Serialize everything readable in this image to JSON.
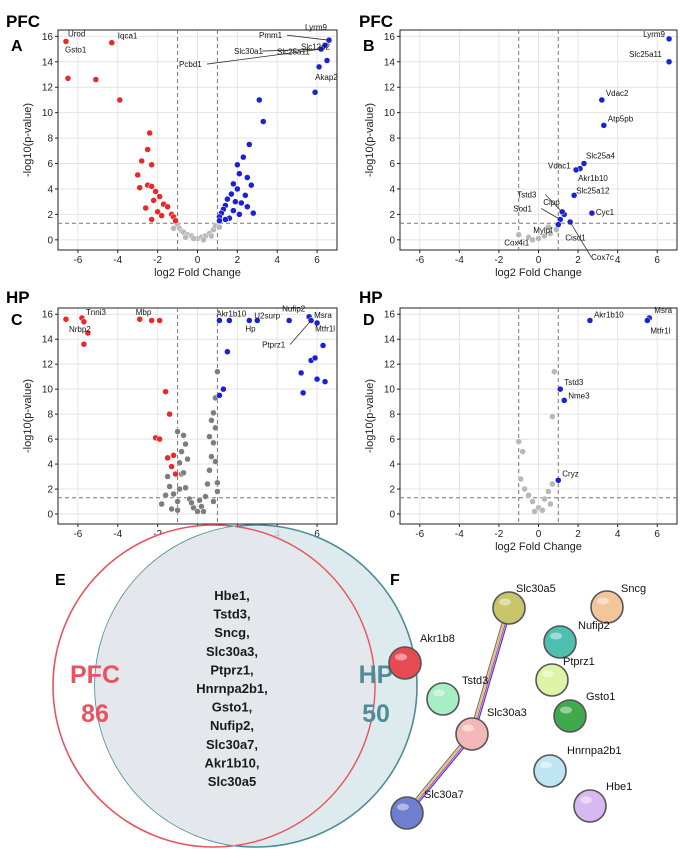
{
  "chart_data": [
    {
      "panel": "A",
      "region": "PFC",
      "type": "scatter",
      "xlabel": "log2 Fold Change",
      "ylabel": "-log10(p-value)",
      "xlim": [
        -7,
        7
      ],
      "ylim": [
        -0.8,
        16.5
      ],
      "xticks": [
        -6,
        -4,
        -2,
        0,
        2,
        4,
        6
      ],
      "yticks": [
        0,
        2,
        4,
        6,
        8,
        10,
        12,
        14,
        16
      ],
      "fc_threshold": [
        -1,
        1
      ],
      "p_threshold": 1.3,
      "colors": {
        "down": "#e8292a",
        "up": "#1b22d6",
        "ns": "#b8b8b8"
      },
      "down": [
        [
          -6.6,
          15.6
        ],
        [
          -4.3,
          15.5
        ],
        [
          -6.5,
          12.7
        ],
        [
          -5.1,
          12.6
        ],
        [
          -3.9,
          11.0
        ],
        [
          -2.4,
          8.4
        ],
        [
          -2.5,
          7.1
        ],
        [
          -2.8,
          6.2
        ],
        [
          -2.3,
          5.9
        ],
        [
          -3.0,
          5.1
        ],
        [
          -2.5,
          4.3
        ],
        [
          -2.3,
          4.2
        ],
        [
          -2.9,
          4.1
        ],
        [
          -2.1,
          3.8
        ],
        [
          -1.9,
          3.4
        ],
        [
          -2.2,
          3.1
        ],
        [
          -1.7,
          2.8
        ],
        [
          -2.6,
          2.5
        ],
        [
          -1.5,
          2.6
        ],
        [
          -2.0,
          2.2
        ],
        [
          -1.3,
          2.0
        ],
        [
          -1.8,
          1.9
        ],
        [
          -1.2,
          1.8
        ],
        [
          -2.3,
          1.6
        ],
        [
          -1.1,
          1.5
        ]
      ],
      "up": [
        [
          6.6,
          15.7
        ],
        [
          6.4,
          15.3
        ],
        [
          6.2,
          15.0
        ],
        [
          6.5,
          14.1
        ],
        [
          6.1,
          13.6
        ],
        [
          5.9,
          11.6
        ],
        [
          3.1,
          11.0
        ],
        [
          3.3,
          9.3
        ],
        [
          2.6,
          7.5
        ],
        [
          2.3,
          6.5
        ],
        [
          2.0,
          5.9
        ],
        [
          2.1,
          5.2
        ],
        [
          2.5,
          4.9
        ],
        [
          1.8,
          4.4
        ],
        [
          2.7,
          4.3
        ],
        [
          2.0,
          4.0
        ],
        [
          1.7,
          3.6
        ],
        [
          2.4,
          3.5
        ],
        [
          1.5,
          3.2
        ],
        [
          1.9,
          3.0
        ],
        [
          2.2,
          2.9
        ],
        [
          1.4,
          2.7
        ],
        [
          2.5,
          2.6
        ],
        [
          1.3,
          2.4
        ],
        [
          1.8,
          2.3
        ],
        [
          1.2,
          2.1
        ],
        [
          2.1,
          2.0
        ],
        [
          1.1,
          1.8
        ],
        [
          1.6,
          1.7
        ],
        [
          1.1,
          1.5
        ],
        [
          1.4,
          1.6
        ],
        [
          2.8,
          2.1
        ]
      ],
      "ns": [
        [
          -1.0,
          1.2
        ],
        [
          -0.9,
          0.9
        ],
        [
          -0.8,
          0.7
        ],
        [
          -0.7,
          0.6
        ],
        [
          -0.5,
          0.4
        ],
        [
          -0.3,
          0.3
        ],
        [
          0.0,
          0.1
        ],
        [
          0.2,
          0.2
        ],
        [
          0.4,
          0.3
        ],
        [
          0.6,
          0.5
        ],
        [
          0.8,
          0.8
        ],
        [
          0.9,
          1.1
        ],
        [
          -1.2,
          0.9
        ],
        [
          1.1,
          1.0
        ],
        [
          -0.6,
          0.2
        ],
        [
          0.3,
          0.0
        ],
        [
          -0.2,
          0.1
        ],
        [
          0.7,
          0.3
        ]
      ],
      "labels": [
        {
          "text": "Urod",
          "x": -6.6,
          "y": 15.6,
          "dx": 2,
          "dy": -5
        },
        {
          "text": "Gsto1",
          "x": -6.6,
          "y": 15.6,
          "dx": -1,
          "dy": 11
        },
        {
          "text": "Iqca1",
          "x": -4.3,
          "y": 15.5,
          "dx": 6,
          "dy": -4
        },
        {
          "text": "Lyrm9",
          "x": 6.6,
          "y": 15.7,
          "dx": -24,
          "dy": -10
        },
        {
          "text": "Pmm1",
          "x": 6.6,
          "y": 15.7,
          "dx": -70,
          "dy": -2,
          "line": true
        },
        {
          "text": "Slc12a2",
          "x": 6.4,
          "y": 15.3,
          "dx": -24,
          "dy": 4
        },
        {
          "text": "Slc30a1",
          "x": 6.2,
          "y": 15.0,
          "dx": -87,
          "dy": 5,
          "line": true
        },
        {
          "text": "Pcbd1",
          "x": 6.2,
          "y": 15.0,
          "dx": -142,
          "dy": 18,
          "line": true
        },
        {
          "text": "Slc25a11",
          "x": 6.5,
          "y": 14.1,
          "dx": -50,
          "dy": -6
        },
        {
          "text": "Akap2",
          "x": 6.1,
          "y": 13.6,
          "dx": -4,
          "dy": 13
        }
      ]
    },
    {
      "panel": "B",
      "region": "PFC",
      "type": "scatter",
      "xlabel": "log2 Fold Change",
      "ylabel": "-log10(p-value)",
      "xlim": [
        -7,
        7
      ],
      "ylim": [
        -0.8,
        16.5
      ],
      "xticks": [
        -6,
        -4,
        -2,
        0,
        2,
        4,
        6
      ],
      "yticks": [
        0,
        2,
        4,
        6,
        8,
        10,
        12,
        14,
        16
      ],
      "fc_threshold": [
        -1,
        1
      ],
      "p_threshold": 1.3,
      "colors": {
        "down": "#e8292a",
        "up": "#1b22d6",
        "ns": "#b8b8b8"
      },
      "down": [],
      "up": [
        [
          6.6,
          15.8
        ],
        [
          6.6,
          14.0
        ],
        [
          3.2,
          11.0
        ],
        [
          3.3,
          9.0
        ],
        [
          2.3,
          6.0
        ],
        [
          2.1,
          5.6
        ],
        [
          1.9,
          5.5
        ],
        [
          1.8,
          3.5
        ],
        [
          2.7,
          2.1
        ],
        [
          1.3,
          2.0
        ],
        [
          1.1,
          1.6
        ],
        [
          1.2,
          2.2
        ],
        [
          1.6,
          1.4
        ],
        [
          1.0,
          1.2
        ]
      ],
      "ns": [
        [
          -1.0,
          0.4
        ],
        [
          -0.5,
          0.2
        ],
        [
          0.0,
          0.1
        ],
        [
          0.3,
          0.3
        ],
        [
          0.6,
          0.5
        ],
        [
          0.9,
          0.8
        ],
        [
          0.5,
          1.0
        ],
        [
          -0.3,
          0.0
        ]
      ],
      "labels": [
        {
          "text": "Lyrm9",
          "x": 6.6,
          "y": 15.8,
          "dx": -26,
          "dy": -2
        },
        {
          "text": "Slc25a11",
          "x": 6.6,
          "y": 14.0,
          "dx": -40,
          "dy": -5
        },
        {
          "text": "Vdac2",
          "x": 3.2,
          "y": 11.0,
          "dx": 4,
          "dy": -4
        },
        {
          "text": "Atp5pb",
          "x": 3.3,
          "y": 9.0,
          "dx": 4,
          "dy": -4
        },
        {
          "text": "Slc25a4",
          "x": 2.3,
          "y": 6.0,
          "dx": 2,
          "dy": -5
        },
        {
          "text": "Vdac1",
          "x": 2.1,
          "y": 5.6,
          "dx": -32,
          "dy": 0
        },
        {
          "text": "Akr1b10",
          "x": 1.9,
          "y": 5.5,
          "dx": 2,
          "dy": 11
        },
        {
          "text": "Tstd3",
          "x": 1.3,
          "y": 2.0,
          "dx": -47,
          "dy": -17,
          "line": true
        },
        {
          "text": "Slc25a12",
          "x": 1.8,
          "y": 3.5,
          "dx": 2,
          "dy": -2
        },
        {
          "text": "Clpp",
          "x": 1.2,
          "y": 2.2,
          "dx": -19,
          "dy": -7
        },
        {
          "text": "Sod1",
          "x": 1.1,
          "y": 1.6,
          "dx": -47,
          "dy": -8,
          "line": true
        },
        {
          "text": "Cyc1",
          "x": 2.7,
          "y": 2.1,
          "dx": 4,
          "dy": 2
        },
        {
          "text": "Mylpf",
          "x": 1.2,
          "y": 2.2,
          "dx": -29,
          "dy": 21
        },
        {
          "text": "Cisd1",
          "x": 1.1,
          "y": 1.6,
          "dx": 5,
          "dy": 21
        },
        {
          "text": "Cox4i1",
          "x": 1.0,
          "y": 1.2,
          "dx": -54,
          "dy": 21
        },
        {
          "text": "Cox7c",
          "x": 1.6,
          "y": 1.4,
          "dx": 21,
          "dy": 38,
          "line": true
        }
      ]
    },
    {
      "panel": "C",
      "region": "HP",
      "type": "scatter",
      "xlabel": "log2 Fold Change",
      "ylabel": "-log10(p-value)",
      "xlim": [
        -7,
        7
      ],
      "ylim": [
        -0.8,
        16.5
      ],
      "xticks": [
        -6,
        -4,
        -2,
        0,
        2,
        4,
        6
      ],
      "yticks": [
        0,
        2,
        4,
        6,
        8,
        10,
        12,
        14,
        16
      ],
      "fc_threshold": [
        -1,
        1
      ],
      "p_threshold": 1.3,
      "colors": {
        "down": "#e8292a",
        "up": "#1b22d6",
        "ns": "#7d7d7d"
      },
      "down": [
        [
          -6.6,
          15.6
        ],
        [
          -5.8,
          15.7
        ],
        [
          -5.7,
          15.4
        ],
        [
          -5.5,
          14.5
        ],
        [
          -5.7,
          13.6
        ],
        [
          -2.9,
          15.6
        ],
        [
          -2.3,
          15.5
        ],
        [
          -1.9,
          15.5
        ],
        [
          -1.6,
          9.8
        ],
        [
          -1.4,
          8.0
        ],
        [
          -2.1,
          6.1
        ],
        [
          -1.9,
          6.0
        ],
        [
          -1.5,
          4.5
        ],
        [
          -1.3,
          3.8
        ],
        [
          -1.2,
          4.7
        ],
        [
          -1.1,
          3.2
        ]
      ],
      "up": [
        [
          1.1,
          15.5
        ],
        [
          1.6,
          15.5
        ],
        [
          2.6,
          15.5
        ],
        [
          3.0,
          15.5
        ],
        [
          4.6,
          15.5
        ],
        [
          5.6,
          15.8
        ],
        [
          5.7,
          15.5
        ],
        [
          6.0,
          15.3
        ],
        [
          5.7,
          12.3
        ],
        [
          5.2,
          11.3
        ],
        [
          5.3,
          9.7
        ],
        [
          6.3,
          13.5
        ],
        [
          5.9,
          12.5
        ],
        [
          6.0,
          10.8
        ],
        [
          6.4,
          10.6
        ],
        [
          1.5,
          13.0
        ],
        [
          1.3,
          10.0
        ],
        [
          1.1,
          9.5
        ]
      ],
      "ns": [
        [
          -1.0,
          0.3
        ],
        [
          -1.0,
          1.0
        ],
        [
          -0.9,
          2.0
        ],
        [
          -0.8,
          3.2
        ],
        [
          -0.9,
          4.1
        ],
        [
          -0.8,
          5.0
        ],
        [
          -0.7,
          6.3
        ],
        [
          -1.0,
          6.6
        ],
        [
          -0.6,
          5.6
        ],
        [
          -0.5,
          4.4
        ],
        [
          -0.7,
          3.3
        ],
        [
          -0.6,
          2.1
        ],
        [
          -0.4,
          1.2
        ],
        [
          -0.2,
          0.5
        ],
        [
          0.0,
          0.2
        ],
        [
          0.2,
          0.6
        ],
        [
          0.4,
          1.4
        ],
        [
          0.5,
          2.4
        ],
        [
          0.6,
          3.5
        ],
        [
          0.7,
          4.6
        ],
        [
          0.8,
          5.7
        ],
        [
          0.9,
          6.9
        ],
        [
          0.8,
          8.1
        ],
        [
          0.9,
          9.3
        ],
        [
          1.0,
          11.4
        ],
        [
          0.7,
          7.5
        ],
        [
          0.6,
          6.2
        ],
        [
          0.9,
          4.2
        ],
        [
          1.0,
          2.5
        ],
        [
          0.3,
          0.2
        ],
        [
          -1.4,
          2.2
        ],
        [
          -1.6,
          1.5
        ],
        [
          -1.8,
          0.8
        ],
        [
          -1.3,
          0.4
        ],
        [
          -1.5,
          3.0
        ],
        [
          -1.2,
          1.6
        ],
        [
          0.8,
          1.0
        ],
        [
          1.0,
          1.8
        ],
        [
          -0.3,
          0.9
        ],
        [
          0.1,
          1.1
        ]
      ],
      "labels": [
        {
          "text": "Tnni3",
          "x": -5.8,
          "y": 15.7,
          "dx": 4,
          "dy": -3
        },
        {
          "text": "Nrbp2",
          "x": -6.6,
          "y": 15.6,
          "dx": 3,
          "dy": 13
        },
        {
          "text": "Mbp",
          "x": -2.9,
          "y": 15.6,
          "dx": -4,
          "dy": -4
        },
        {
          "text": "Akr1b10",
          "x": 1.1,
          "y": 15.5,
          "dx": -3,
          "dy": -4
        },
        {
          "text": "Hp",
          "x": 2.6,
          "y": 15.5,
          "dx": -4,
          "dy": 11
        },
        {
          "text": "U2surp",
          "x": 3.0,
          "y": 15.5,
          "dx": -3,
          "dy": -2
        },
        {
          "text": "Nufip2",
          "x": 5.6,
          "y": 15.8,
          "dx": -27,
          "dy": -5
        },
        {
          "text": "Msra",
          "x": 6.0,
          "y": 15.3,
          "dx": -3,
          "dy": -5
        },
        {
          "text": "Mtfr1l",
          "x": 5.7,
          "y": 15.5,
          "dx": 4,
          "dy": 11
        },
        {
          "text": "Ptprz1",
          "x": 5.7,
          "y": 15.5,
          "dx": -49,
          "dy": 27,
          "line": true
        }
      ]
    },
    {
      "panel": "D",
      "region": "HP",
      "type": "scatter",
      "xlabel": "log2 Fold Change",
      "ylabel": "-log10(p-value)",
      "xlim": [
        -7,
        7
      ],
      "ylim": [
        -0.8,
        16.5
      ],
      "xticks": [
        -6,
        -4,
        -2,
        0,
        2,
        4,
        6
      ],
      "yticks": [
        0,
        2,
        4,
        6,
        8,
        10,
        12,
        14,
        16
      ],
      "fc_threshold": [
        -1,
        1
      ],
      "p_threshold": 1.3,
      "colors": {
        "down": "#e8292a",
        "up": "#1b22d6",
        "ns": "#b8b8b8"
      },
      "down": [],
      "up": [
        [
          2.6,
          15.5
        ],
        [
          5.6,
          15.7
        ],
        [
          5.5,
          15.5
        ],
        [
          1.1,
          10.0
        ],
        [
          1.3,
          9.1
        ],
        [
          1.0,
          2.7
        ]
      ],
      "ns": [
        [
          0.8,
          11.4
        ],
        [
          0.7,
          7.8
        ],
        [
          -1.0,
          5.8
        ],
        [
          -0.8,
          5.0
        ],
        [
          -0.9,
          2.8
        ],
        [
          -0.7,
          2.0
        ],
        [
          -0.5,
          1.5
        ],
        [
          -0.3,
          1.0
        ],
        [
          0.0,
          0.5
        ],
        [
          0.3,
          1.2
        ],
        [
          0.5,
          1.8
        ],
        [
          0.7,
          2.4
        ],
        [
          0.2,
          0.3
        ],
        [
          -0.2,
          0.2
        ],
        [
          0.6,
          0.8
        ]
      ],
      "labels": [
        {
          "text": "Akr1b10",
          "x": 2.6,
          "y": 15.5,
          "dx": 4,
          "dy": -3
        },
        {
          "text": "Msra",
          "x": 5.6,
          "y": 15.7,
          "dx": 5,
          "dy": -5
        },
        {
          "text": "Mtfr1l",
          "x": 5.5,
          "y": 15.5,
          "dx": 3,
          "dy": 13
        },
        {
          "text": "Tstd3",
          "x": 1.1,
          "y": 10.0,
          "dx": 4,
          "dy": -4
        },
        {
          "text": "Nme3",
          "x": 1.3,
          "y": 9.1,
          "dx": 4,
          "dy": -2
        },
        {
          "text": "Cryz",
          "x": 1.0,
          "y": 2.7,
          "dx": 4,
          "dy": -4
        }
      ]
    }
  ],
  "venn": {
    "panel": "E",
    "left_label": "PFC",
    "left_count": "86",
    "right_label": "HP",
    "right_count": "50",
    "shared_genes": [
      "Hbe1,",
      "Tstd3,",
      "Sncg,",
      "Slc30a3,",
      "Ptprz1,",
      "Hnrnpa2b1,",
      "Gsto1,",
      "Nufip2,",
      "Slc30a7,",
      "Akr1b10,",
      "Slc30a5"
    ],
    "left_color": "#e8545d",
    "right_color": "#4e8c98"
  },
  "network": {
    "panel": "F",
    "nodes": [
      {
        "name": "Slc30a5",
        "color": "#c9c56a"
      },
      {
        "name": "Sncg",
        "color": "#f3c59b"
      },
      {
        "name": "Akr1b8",
        "color": "#e84a52"
      },
      {
        "name": "Nufip2",
        "color": "#4fbfb0"
      },
      {
        "name": "Tstd3",
        "color": "#a6efc4"
      },
      {
        "name": "Ptprz1",
        "color": "#ddf3a5"
      },
      {
        "name": "Gsto1",
        "color": "#3faa4c"
      },
      {
        "name": "Slc30a3",
        "color": "#f2b8b8"
      },
      {
        "name": "Hnrnpa2b1",
        "color": "#bfe5f3"
      },
      {
        "name": "Slc30a7",
        "color": "#6f7fcf"
      },
      {
        "name": "Hbe1",
        "color": "#d8b8f0"
      }
    ],
    "edges": [
      [
        "Slc30a5",
        "Slc30a3"
      ],
      [
        "Slc30a3",
        "Slc30a7"
      ]
    ],
    "edge_colors": [
      "#3f3fd0",
      "#c23fc2",
      "#d6c22a",
      "#7a7a7a"
    ]
  }
}
